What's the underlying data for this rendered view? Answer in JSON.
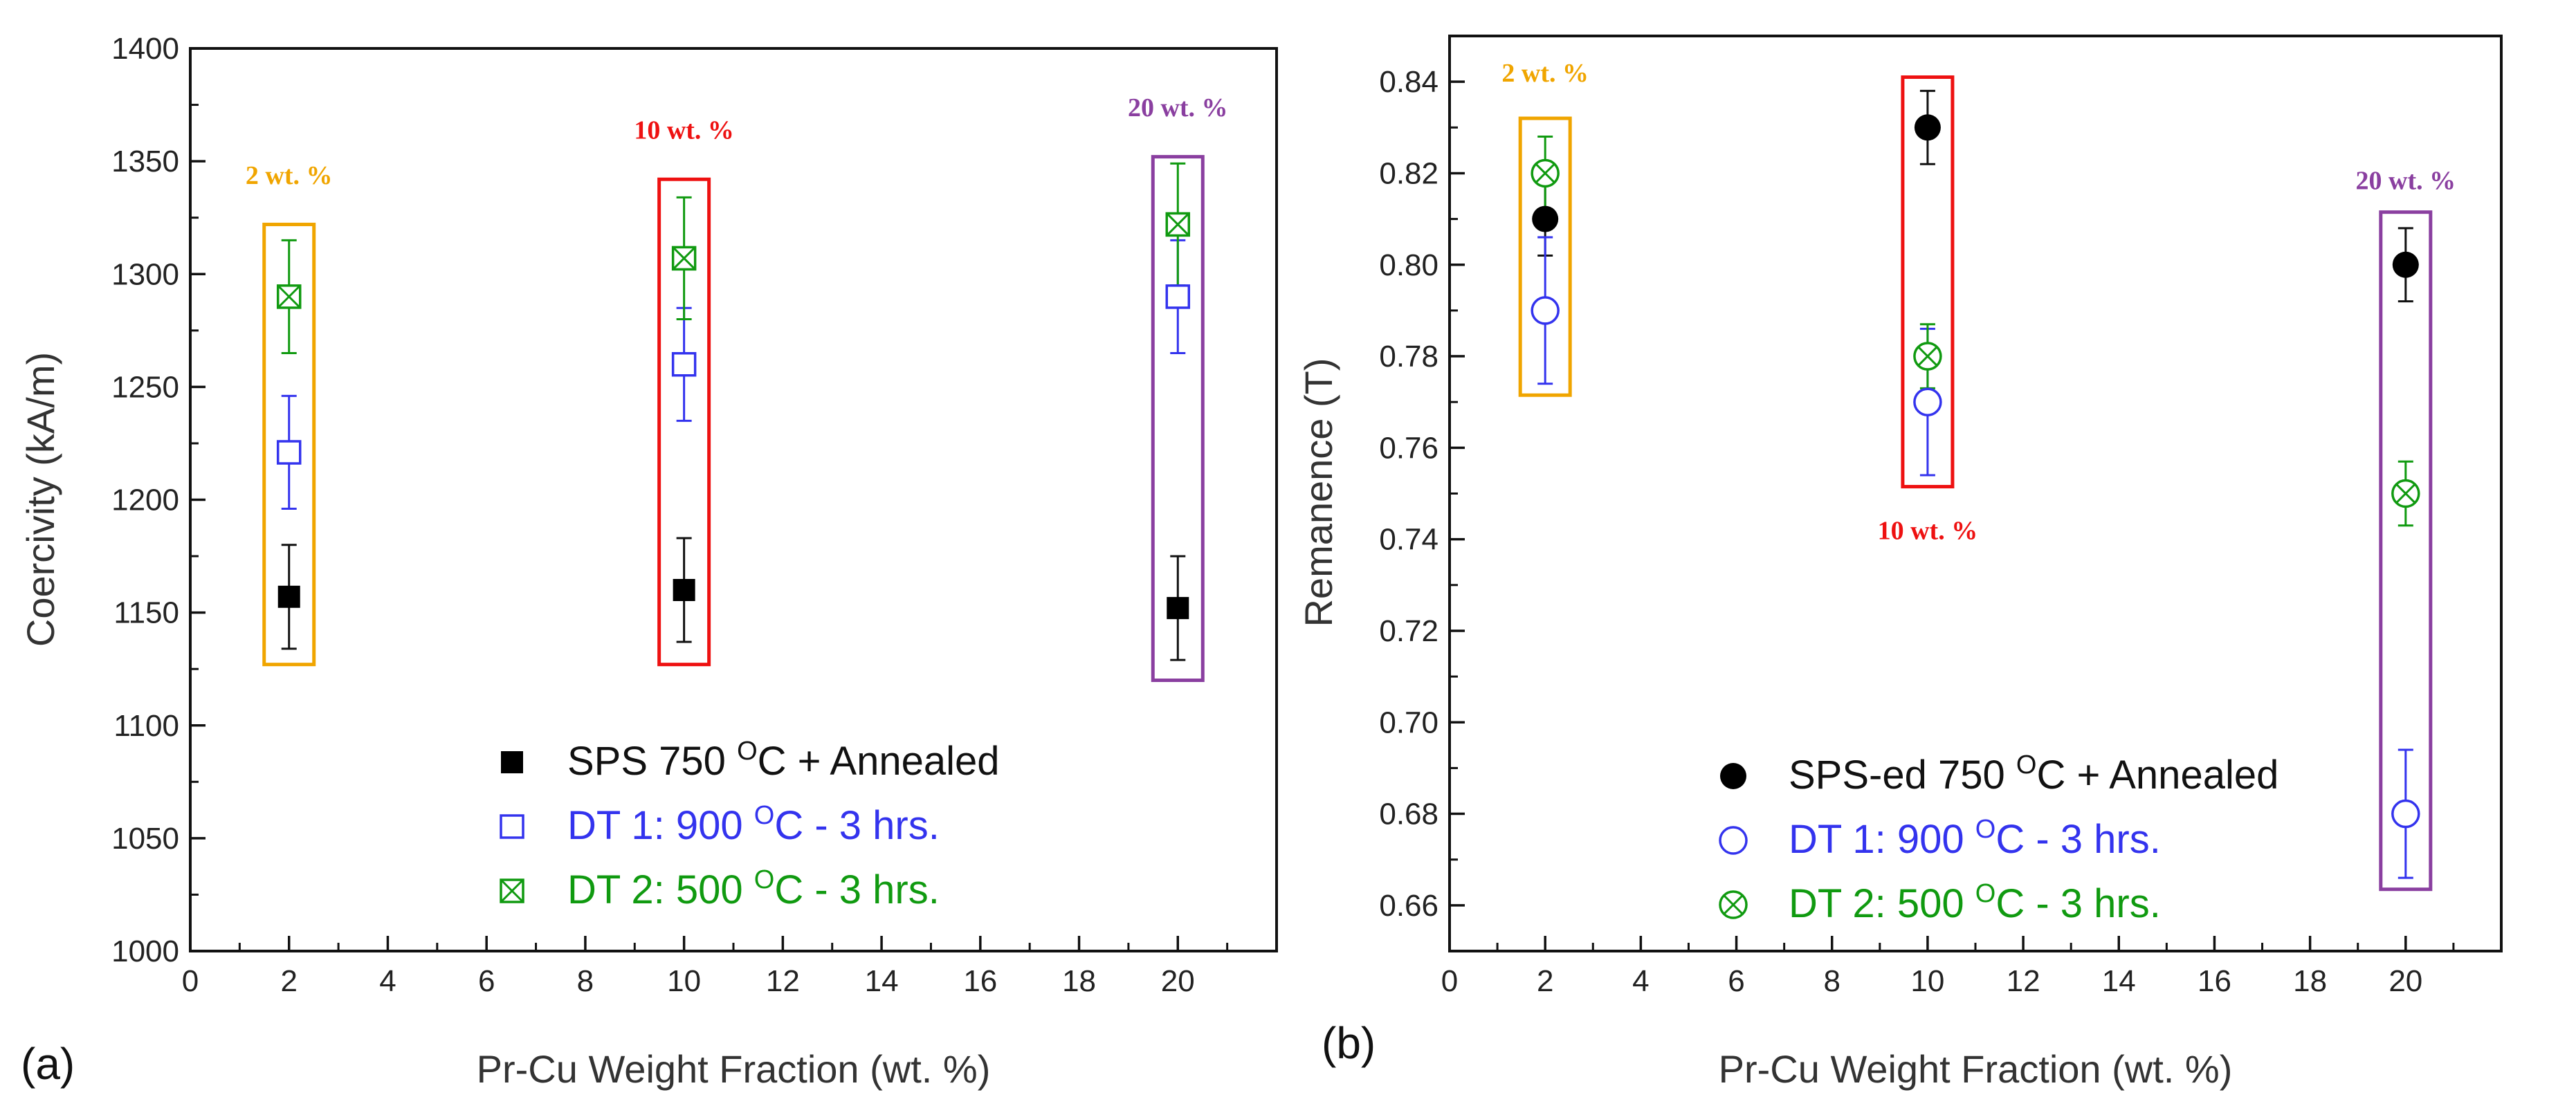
{
  "chart_data": [
    {
      "type": "scatter",
      "panel_label": "(a)",
      "xlabel": "Pr-Cu Weight Fraction (wt. %)",
      "ylabel": "Coercivity (kA/m)",
      "xlim": [
        0,
        22
      ],
      "ylim": [
        1000,
        1400
      ],
      "x_ticks": [
        0,
        2,
        4,
        6,
        8,
        10,
        12,
        14,
        16,
        18,
        20
      ],
      "y_ticks": [
        1000,
        1050,
        1100,
        1150,
        1200,
        1250,
        1300,
        1350,
        1400
      ],
      "series": [
        {
          "name": "SPS 750 oC + Annealed",
          "legend_parts": [
            "SPS 750 ",
            "O",
            "C + Annealed"
          ],
          "marker": "filled-square",
          "color": "#000000",
          "x": [
            2,
            10,
            20
          ],
          "y": [
            1157,
            1160,
            1152
          ],
          "err": [
            23,
            23,
            23
          ]
        },
        {
          "name": "DT 1: 900 oC - 3 hrs.",
          "legend_parts": [
            "DT 1: 900 ",
            "O",
            "C - 3 hrs."
          ],
          "marker": "open-square",
          "color": "#3333ee",
          "x": [
            2,
            10,
            20
          ],
          "y": [
            1221,
            1260,
            1290
          ],
          "err": [
            25,
            25,
            25
          ]
        },
        {
          "name": "DT 2: 500 oC - 3 hrs.",
          "legend_parts": [
            "DT 2: 500 ",
            "O",
            "C - 3 hrs."
          ],
          "marker": "crossed-square",
          "color": "#109a10",
          "x": [
            2,
            10,
            20
          ],
          "y": [
            1290,
            1307,
            1322
          ],
          "err": [
            25,
            27,
            27
          ]
        }
      ],
      "annotations": [
        {
          "text": "2 wt. %",
          "color": "#f0a500",
          "x": 2,
          "box_y": [
            1127,
            1322
          ],
          "label_y": 1340
        },
        {
          "text": "10 wt. %",
          "color": "#ee1111",
          "x": 10,
          "box_y": [
            1127,
            1342
          ],
          "label_y": 1360
        },
        {
          "text": "20 wt. %",
          "color": "#8a3fa0",
          "x": 20,
          "box_y": [
            1120,
            1352
          ],
          "label_y": 1370
        }
      ],
      "legend_position": "bottom-right"
    },
    {
      "type": "scatter",
      "panel_label": "(b)",
      "xlabel": "Pr-Cu Weight Fraction (wt. %)",
      "ylabel": "Remanence (T)",
      "xlim": [
        0,
        22
      ],
      "ylim": [
        0.65,
        0.85
      ],
      "x_ticks": [
        0,
        2,
        4,
        6,
        8,
        10,
        12,
        14,
        16,
        18,
        20
      ],
      "y_ticks": [
        "0.66",
        "0.68",
        "0.70",
        "0.72",
        "0.74",
        "0.76",
        "0.78",
        "0.80",
        "0.82",
        "0.84"
      ],
      "series": [
        {
          "name": "SPS-ed 750 oC + Annealed",
          "legend_parts": [
            "SPS-ed 750 ",
            "O",
            "C + Annealed"
          ],
          "marker": "filled-circle",
          "color": "#000000",
          "x": [
            2,
            10,
            20
          ],
          "y": [
            0.81,
            0.83,
            0.8
          ],
          "err": [
            0.008,
            0.008,
            0.008
          ]
        },
        {
          "name": "DT 1: 900 oC - 3 hrs.",
          "legend_parts": [
            "DT 1: 900 ",
            "O",
            "C - 3 hrs."
          ],
          "marker": "open-circle",
          "color": "#3333ee",
          "x": [
            2,
            10,
            20
          ],
          "y": [
            0.79,
            0.77,
            0.68
          ],
          "err": [
            0.016,
            0.016,
            0.014
          ]
        },
        {
          "name": "DT 2: 500 oC - 3 hrs.",
          "legend_parts": [
            "DT 2: 500 ",
            "O",
            "C - 3 hrs."
          ],
          "marker": "crossed-circle",
          "color": "#109a10",
          "x": [
            2,
            10,
            20
          ],
          "y": [
            0.82,
            0.78,
            0.75
          ],
          "err": [
            0.008,
            0.007,
            0.007
          ]
        }
      ],
      "annotations": [
        {
          "text": "2 wt. %",
          "color": "#f0a500",
          "x": 2,
          "box_y": [
            0.7715,
            0.832
          ],
          "label_y": 0.84
        },
        {
          "text": "10 wt. %",
          "color": "#ee1111",
          "x": 10,
          "box_y": [
            0.7515,
            0.841
          ],
          "label_y": 0.74
        },
        {
          "text": "20 wt. %",
          "color": "#8a3fa0",
          "x": 20,
          "box_y": [
            0.6635,
            0.8115
          ],
          "label_y": 0.8165
        }
      ],
      "legend_position": "bottom-right"
    }
  ]
}
